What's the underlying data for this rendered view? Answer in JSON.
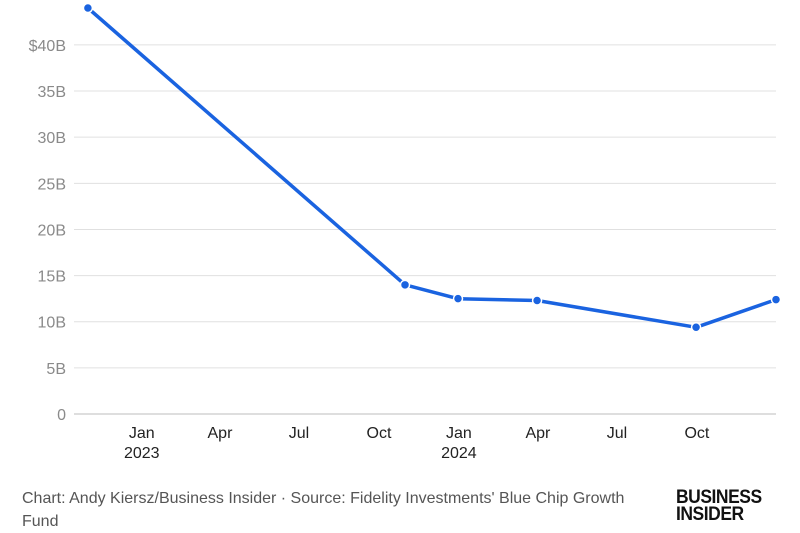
{
  "chart_data": {
    "type": "line",
    "title": "",
    "xlabel": "",
    "ylabel": "",
    "ylim": [
      0,
      44
    ],
    "y_ticks": [
      {
        "value": 0,
        "label": "0"
      },
      {
        "value": 5,
        "label": "5B"
      },
      {
        "value": 10,
        "label": "10B"
      },
      {
        "value": 15,
        "label": "15B"
      },
      {
        "value": 20,
        "label": "20B"
      },
      {
        "value": 25,
        "label": "25B"
      },
      {
        "value": 30,
        "label": "30B"
      },
      {
        "value": 35,
        "label": "35B"
      },
      {
        "value": 40,
        "label": "$40B"
      }
    ],
    "x_ticks": [
      {
        "date": "2023-01-01",
        "label": "Jan",
        "sublabel": "2023"
      },
      {
        "date": "2023-04-01",
        "label": "Apr",
        "sublabel": ""
      },
      {
        "date": "2023-07-01",
        "label": "Jul",
        "sublabel": ""
      },
      {
        "date": "2023-10-01",
        "label": "Oct",
        "sublabel": ""
      },
      {
        "date": "2024-01-01",
        "label": "Jan",
        "sublabel": "2024"
      },
      {
        "date": "2024-04-01",
        "label": "Apr",
        "sublabel": ""
      },
      {
        "date": "2024-07-01",
        "label": "Jul",
        "sublabel": ""
      },
      {
        "date": "2024-10-01",
        "label": "Oct",
        "sublabel": ""
      }
    ],
    "xlim": [
      "2022-10-15",
      "2024-12-31"
    ],
    "grid": true,
    "legend": "none",
    "series": [
      {
        "color": "#1a63e0",
        "points": [
          {
            "x": "2022-10-31",
            "y": 44.0
          },
          {
            "x": "2023-10-31",
            "y": 14.0
          },
          {
            "x": "2023-12-31",
            "y": 12.5
          },
          {
            "x": "2024-03-31",
            "y": 12.3
          },
          {
            "x": "2024-09-30",
            "y": 9.4
          },
          {
            "x": "2024-12-31",
            "y": 12.4
          }
        ]
      }
    ]
  },
  "footer": {
    "credit": "Chart: Andy Kiersz/Business Insider · Source: Fidelity Investments' Blue Chip Growth Fund"
  },
  "logo": {
    "line1": "BUSINESS",
    "line2": "INSIDER"
  }
}
